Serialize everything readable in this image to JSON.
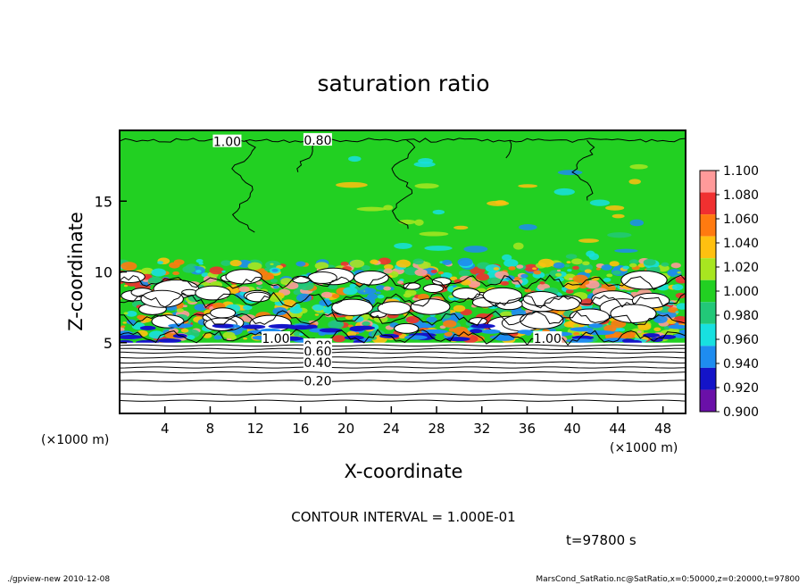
{
  "chart_data": {
    "type": "heatmap",
    "title": "saturation ratio",
    "xlabel": "X-coordinate",
    "ylabel": "Z-coordinate",
    "x_unit": "(×1000 m)",
    "z_unit": "(×1000 m)",
    "xlim": [
      0,
      50
    ],
    "ylim": [
      0,
      20
    ],
    "x_ticks": [
      4,
      8,
      12,
      16,
      20,
      24,
      28,
      32,
      36,
      40,
      44,
      48
    ],
    "y_ticks": [
      5,
      10,
      15
    ],
    "colorbar": {
      "levels": [
        "1.100",
        "1.080",
        "1.060",
        "1.040",
        "1.020",
        "1.000",
        "0.980",
        "0.960",
        "0.940",
        "0.920",
        "0.900"
      ],
      "colors": [
        "#ff9a9a",
        "#f03030",
        "#ff7a10",
        "#ffc010",
        "#a8e620",
        "#22d022",
        "#22c878",
        "#18e0e0",
        "#1e8cf0",
        "#1414c8",
        "#6a10a8"
      ]
    },
    "contour_labels": [
      {
        "text": "1.00",
        "x": 9.5,
        "z": 19.2
      },
      {
        "text": "0.80",
        "x": 17.5,
        "z": 19.3
      },
      {
        "text": "1.00",
        "x": 13.8,
        "z": 5.3
      },
      {
        "text": "0.80",
        "x": 17.5,
        "z": 4.8
      },
      {
        "text": "0.60",
        "x": 17.5,
        "z": 4.4
      },
      {
        "text": "0.40",
        "x": 17.5,
        "z": 3.6
      },
      {
        "text": "0.20",
        "x": 17.5,
        "z": 2.3
      },
      {
        "text": "1.00",
        "x": 37.8,
        "z": 5.3
      }
    ],
    "contour_interval": "CONTOUR INTERVAL = 1.000E-01",
    "time": "t=97800 s",
    "footer_left": "./gpview-new   2010-12-08",
    "footer_right": "MarsCond_SatRatio.nc@SatRatio,x=0:50000,z=0:20000,t=97800"
  }
}
